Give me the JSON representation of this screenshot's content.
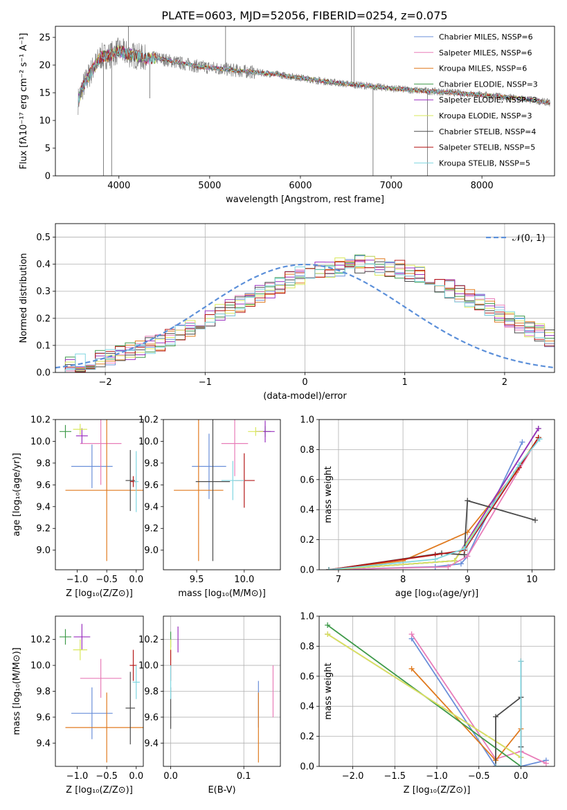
{
  "title": "PLATE=0603, MJD=52056, FIBERID=0254, z=0.075",
  "colors": {
    "Chabrier MILES": "#6a8fd9",
    "Salpeter MILES": "#e87cb8",
    "Kroupa MILES": "#e07a1f",
    "Chabrier ELODIE": "#3f9a4a",
    "Salpeter ELODIE": "#9a2fbf",
    "Kroupa ELODIE": "#d9e85a",
    "Chabrier STELIB": "#4a4a4a",
    "Salpeter STELIB": "#b51818",
    "Kroupa STELIB": "#7fd6e0",
    "data": "#808080",
    "normal": "#5b8fd9"
  },
  "chart_data": [
    {
      "type": "line",
      "title": "PLATE=0603, MJD=52056, FIBERID=0254, z=0.075",
      "xlabel": "wavelength [Angstrom, rest frame]",
      "ylabel": "Flux [fλ10⁻¹⁷ erg cm⁻² s⁻¹ A⁻¹]",
      "xlim": [
        3300,
        8800
      ],
      "ylim": [
        0,
        27
      ],
      "xticks": [
        "4000",
        "5000",
        "6000",
        "7000",
        "8000"
      ],
      "yticks": [
        "0",
        "5",
        "10",
        "15",
        "20",
        "25"
      ],
      "legend_placement": "top-right",
      "legend": [
        "Chabrier MILES, NSSP=6",
        "Salpeter MILES, NSSP=6",
        "Kroupa MILES, NSSP=6",
        "Chabrier ELODIE, NSSP=3",
        "Salpeter ELODIE, NSSP=3",
        "Kroupa ELODIE, NSSP=3",
        "Chabrier STELIB, NSSP=4",
        "Salpeter STELIB, NSSP=5",
        "Kroupa STELIB, NSSP=5"
      ],
      "model_x": [
        3550,
        3600,
        3700,
        3800,
        3900,
        4000,
        4100,
        4200,
        4300,
        4400,
        4500,
        4700,
        4900,
        5100,
        5300,
        5500,
        5700,
        6000,
        6200,
        6500,
        6700,
        7000,
        7300,
        7500,
        7700,
        8000,
        8200,
        8500,
        8750
      ],
      "model_y": [
        13.5,
        16,
        19,
        21.5,
        21.8,
        22.6,
        22,
        21.6,
        21.2,
        21.3,
        21.0,
        20.3,
        19.7,
        19.4,
        19.0,
        18.7,
        18.4,
        17.7,
        17.2,
        16.6,
        16.3,
        15.8,
        15.4,
        15.2,
        15.0,
        14.6,
        14.3,
        13.8,
        13.2
      ],
      "data_spikes": [
        {
          "x": 3830,
          "y": 0
        },
        {
          "x": 3920,
          "y": 0
        },
        {
          "x": 4105,
          "y": 27
        },
        {
          "x": 4340,
          "y": 14
        },
        {
          "x": 5175,
          "y": 27
        },
        {
          "x": 6563,
          "y": 27
        },
        {
          "x": 6590,
          "y": 27
        },
        {
          "x": 6800,
          "y": 0
        },
        {
          "x": 7400,
          "y": 0
        }
      ],
      "grid": false
    },
    {
      "type": "histogram",
      "xlabel": "(data-model)/error",
      "ylabel": "Normed distribution",
      "xlim": [
        -2.5,
        2.5
      ],
      "ylim": [
        0,
        0.55
      ],
      "xticks": [
        "−2",
        "−1",
        "0",
        "1",
        "2"
      ],
      "yticks": [
        "0.0",
        "0.1",
        "0.2",
        "0.3",
        "0.4",
        "0.5"
      ],
      "legend": [
        "𝒩(0, 1)"
      ],
      "legend_placement": "top-right",
      "bin_width": 0.1,
      "bin_start": -2.5,
      "base_values": [
        0.02,
        0.03,
        0.035,
        0.04,
        0.05,
        0.055,
        0.065,
        0.08,
        0.09,
        0.1,
        0.11,
        0.125,
        0.145,
        0.165,
        0.18,
        0.2,
        0.22,
        0.24,
        0.255,
        0.275,
        0.29,
        0.31,
        0.325,
        0.34,
        0.36,
        0.37,
        0.38,
        0.385,
        0.39,
        0.395,
        0.4,
        0.395,
        0.39,
        0.385,
        0.38,
        0.37,
        0.36,
        0.34,
        0.325,
        0.31,
        0.29,
        0.275,
        0.255,
        0.24,
        0.22,
        0.2,
        0.18,
        0.165,
        0.145,
        0.125
      ],
      "grid": true
    },
    {
      "type": "scatter",
      "xlabel": "Z [log₁₀(Z/Z⊙)]",
      "ylabel": "age  [log₁₀(age/yr)]",
      "xlim": [
        -1.37,
        0.12
      ],
      "ylim": [
        8.82,
        10.2
      ],
      "xticks": [
        "−1.0",
        "−0.5",
        "0.0"
      ],
      "yticks": [
        "9.0",
        "9.2",
        "9.4",
        "9.6",
        "9.8",
        "10.0",
        "10.2"
      ],
      "points": [
        {
          "model": "Chabrier MILES",
          "x": -0.75,
          "y": 9.77,
          "dx": 0.35,
          "dy": 0.2
        },
        {
          "model": "Salpeter MILES",
          "x": -0.6,
          "y": 9.98,
          "dx": 0.35,
          "dy": 0.38
        },
        {
          "model": "Kroupa MILES",
          "x": -0.5,
          "y": 9.55,
          "dx": 0.7,
          "dy": 0.65
        },
        {
          "model": "Chabrier ELODIE",
          "x": -1.2,
          "y": 10.09,
          "dx": 0.1,
          "dy": 0.06
        },
        {
          "model": "Salpeter ELODIE",
          "x": -0.92,
          "y": 10.05,
          "dx": 0.1,
          "dy": 0.07
        },
        {
          "model": "Kroupa ELODIE",
          "x": -0.95,
          "y": 10.11,
          "dx": 0.12,
          "dy": 0.05
        },
        {
          "model": "Chabrier STELIB",
          "x": -0.1,
          "y": 9.64,
          "dx": 0.08,
          "dy": 0.28
        },
        {
          "model": "Salpeter STELIB",
          "x": -0.05,
          "y": 9.63,
          "dx": 0.05,
          "dy": 0.05
        },
        {
          "model": "Kroupa STELIB",
          "x": 0.0,
          "y": 9.63,
          "dx": 0.04,
          "dy": 0.28
        }
      ],
      "grid": false
    },
    {
      "type": "scatter",
      "xlabel": "mass [log₁₀(M/M⊙)]",
      "ylabel": "",
      "xlim": [
        9.15,
        10.38
      ],
      "ylim": [
        8.82,
        10.2
      ],
      "xticks": [
        "9.5",
        "10.0"
      ],
      "yticks": [
        "9.0",
        "9.2",
        "9.4",
        "9.6",
        "9.8",
        "10.0",
        "10.2"
      ],
      "points": [
        {
          "model": "Chabrier MILES",
          "x": 9.63,
          "y": 9.77,
          "dx": 0.18,
          "dy": 0.3
        },
        {
          "model": "Salpeter MILES",
          "x": 9.9,
          "y": 9.98,
          "dx": 0.14,
          "dy": 0.3
        },
        {
          "model": "Kroupa MILES",
          "x": 9.52,
          "y": 9.55,
          "dx": 0.26,
          "dy": 0.65
        },
        {
          "model": "Chabrier ELODIE",
          "x": 10.22,
          "y": 10.09,
          "dx": 0.06,
          "dy": 0.05
        },
        {
          "model": "Salpeter ELODIE",
          "x": 10.22,
          "y": 10.09,
          "dx": 0.1,
          "dy": 0.1
        },
        {
          "model": "Kroupa ELODIE",
          "x": 10.12,
          "y": 10.09,
          "dx": 0.08,
          "dy": 0.04
        },
        {
          "model": "Chabrier STELIB",
          "x": 9.67,
          "y": 9.63,
          "dx": 0.18,
          "dy": 0.73
        },
        {
          "model": "Salpeter STELIB",
          "x": 10.0,
          "y": 9.64,
          "dx": 0.11,
          "dy": 0.25
        },
        {
          "model": "Kroupa STELIB",
          "x": 9.88,
          "y": 9.64,
          "dx": 0.12,
          "dy": 0.18
        }
      ],
      "grid": false
    },
    {
      "type": "line",
      "xlabel": "age  [log₁₀(age/yr)]",
      "ylabel": "mass weight",
      "xlim": [
        6.7,
        10.35
      ],
      "ylim": [
        0,
        1.0
      ],
      "xticks": [
        "7",
        "8",
        "9",
        "10"
      ],
      "yticks": [
        "0.0",
        "0.2",
        "0.4",
        "0.6",
        "0.8",
        "1.0"
      ],
      "series": [
        {
          "model": "Chabrier MILES",
          "x": [
            6.85,
            8.5,
            8.9,
            9.0,
            9.85
          ],
          "y": [
            0.0,
            0.02,
            0.04,
            0.09,
            0.85
          ]
        },
        {
          "model": "Salpeter MILES",
          "x": [
            6.85,
            8.7,
            9.0,
            10.1
          ],
          "y": [
            0.0,
            0.02,
            0.09,
            0.88
          ]
        },
        {
          "model": "Kroupa MILES",
          "x": [
            6.85,
            8.0,
            9.0,
            9.75,
            10.1
          ],
          "y": [
            0.0,
            0.06,
            0.25,
            0.65,
            0.88
          ]
        },
        {
          "model": "Chabrier ELODIE",
          "x": [
            6.85,
            8.8,
            10.1
          ],
          "y": [
            0.0,
            0.06,
            0.94
          ]
        },
        {
          "model": "Salpeter ELODIE",
          "x": [
            6.85,
            8.8,
            10.1
          ],
          "y": [
            0.0,
            0.06,
            0.94
          ]
        },
        {
          "model": "Kroupa ELODIE",
          "x": [
            6.85,
            8.8,
            10.1
          ],
          "y": [
            0.0,
            0.06,
            0.88
          ]
        },
        {
          "model": "Chabrier STELIB",
          "x": [
            6.85,
            8.6,
            8.95,
            9.0,
            10.05
          ],
          "y": [
            0.0,
            0.11,
            0.1,
            0.46,
            0.33
          ]
        },
        {
          "model": "Salpeter STELIB",
          "x": [
            6.85,
            8.5,
            8.95,
            9.8,
            10.1
          ],
          "y": [
            0.0,
            0.1,
            0.13,
            0.68,
            0.88
          ]
        },
        {
          "model": "Kroupa STELIB",
          "x": [
            6.85,
            8.5,
            8.95,
            9.8,
            10.12
          ],
          "y": [
            0.0,
            0.07,
            0.14,
            0.7,
            0.87
          ]
        }
      ],
      "grid": true
    },
    {
      "type": "scatter",
      "xlabel": "Z [log₁₀(Z/Z⊙)]",
      "ylabel": "mass [log₁₀(M/M⊙)]",
      "xlim": [
        -1.37,
        0.12
      ],
      "ylim": [
        9.22,
        10.38
      ],
      "xticks": [
        "−1.0",
        "−0.5",
        "0.0"
      ],
      "yticks": [
        "9.4",
        "9.6",
        "9.8",
        "10.0",
        "10.2"
      ],
      "points": [
        {
          "model": "Chabrier MILES",
          "x": -0.75,
          "y": 9.63,
          "dx": 0.35,
          "dy": 0.2
        },
        {
          "model": "Salpeter MILES",
          "x": -0.6,
          "y": 9.9,
          "dx": 0.35,
          "dy": 0.15
        },
        {
          "model": "Kroupa MILES",
          "x": -0.5,
          "y": 9.52,
          "dx": 0.7,
          "dy": 0.27
        },
        {
          "model": "Chabrier ELODIE",
          "x": -1.2,
          "y": 10.22,
          "dx": 0.1,
          "dy": 0.06
        },
        {
          "model": "Salpeter ELODIE",
          "x": -0.92,
          "y": 10.22,
          "dx": 0.14,
          "dy": 0.1
        },
        {
          "model": "Kroupa ELODIE",
          "x": -0.95,
          "y": 10.12,
          "dx": 0.12,
          "dy": 0.08
        },
        {
          "model": "Chabrier STELIB",
          "x": -0.1,
          "y": 9.67,
          "dx": 0.08,
          "dy": 0.28
        },
        {
          "model": "Salpeter STELIB",
          "x": -0.05,
          "y": 10.0,
          "dx": 0.06,
          "dy": 0.12
        },
        {
          "model": "Kroupa STELIB",
          "x": 0.0,
          "y": 9.87,
          "dx": 0.06,
          "dy": 0.13
        }
      ],
      "grid": false
    },
    {
      "type": "scatter",
      "xlabel": "E(B-V)",
      "ylabel": "",
      "xlim": [
        -0.01,
        0.15
      ],
      "ylim": [
        9.22,
        10.38
      ],
      "xticks": [
        "0.0",
        "0.1"
      ],
      "yticks": [
        "9.4",
        "9.6",
        "9.8",
        "10.0",
        "10.2"
      ],
      "points": [
        {
          "model": "Chabrier MILES",
          "x": 0.12,
          "y": 9.7,
          "dx": 0.0,
          "dy": 0.18
        },
        {
          "model": "Salpeter MILES",
          "x": 0.14,
          "y": 9.8,
          "dx": 0.0,
          "dy": 0.2
        },
        {
          "model": "Kroupa MILES",
          "x": 0.12,
          "y": 9.52,
          "dx": 0.0,
          "dy": 0.27
        },
        {
          "model": "Chabrier ELODIE",
          "x": 0.0,
          "y": 10.2,
          "dx": 0.0,
          "dy": 0.06
        },
        {
          "model": "Salpeter ELODIE",
          "x": 0.01,
          "y": 10.2,
          "dx": 0.0,
          "dy": 0.1
        },
        {
          "model": "Kroupa ELODIE",
          "x": 0.0,
          "y": 10.12,
          "dx": 0.0,
          "dy": 0.08
        },
        {
          "model": "Chabrier STELIB",
          "x": 0.0,
          "y": 9.67,
          "dx": 0.0,
          "dy": 0.16
        },
        {
          "model": "Salpeter STELIB",
          "x": 0.0,
          "y": 10.0,
          "dx": 0.0,
          "dy": 0.12
        },
        {
          "model": "Kroupa STELIB",
          "x": 0.0,
          "y": 9.87,
          "dx": 0.0,
          "dy": 0.13
        }
      ],
      "grid": true
    },
    {
      "type": "line",
      "xlabel": "Z [log₁₀(Z/Z⊙)]",
      "ylabel": "mass weight",
      "xlim": [
        -2.4,
        0.4
      ],
      "ylim": [
        0,
        1.0
      ],
      "xticks": [
        "−2.0",
        "−1.5",
        "−1.0",
        "−0.5",
        "0.0"
      ],
      "yticks": [
        "0.0",
        "0.2",
        "0.4",
        "0.6",
        "0.8",
        "1.0"
      ],
      "series": [
        {
          "model": "Chabrier MILES",
          "x": [
            -1.3,
            -0.3,
            0.0,
            0.3
          ],
          "y": [
            0.85,
            0.0,
            0.0,
            0.04
          ]
        },
        {
          "model": "Salpeter MILES",
          "x": [
            -1.3,
            -0.3,
            0.0,
            0.3
          ],
          "y": [
            0.88,
            0.05,
            0.1,
            0.02
          ]
        },
        {
          "model": "Kroupa MILES",
          "x": [
            -1.3,
            -0.3,
            0.0
          ],
          "y": [
            0.65,
            0.04,
            0.25
          ]
        },
        {
          "model": "Chabrier ELODIE",
          "x": [
            -2.3,
            0.0
          ],
          "y": [
            0.94,
            0.0
          ]
        },
        {
          "model": "Salpeter ELODIE",
          "x": [
            -2.3,
            0.0
          ],
          "y": [
            0.88,
            0.06
          ]
        },
        {
          "model": "Kroupa ELODIE",
          "x": [
            -2.3,
            0.0
          ],
          "y": [
            0.88,
            0.06
          ]
        },
        {
          "model": "Chabrier STELIB",
          "x": [
            -0.3,
            -0.3,
            0.0,
            0.0
          ],
          "y": [
            0.0,
            0.33,
            0.46,
            0.13
          ]
        },
        {
          "model": "Salpeter STELIB",
          "x": [
            -0.3,
            0.0,
            0.0
          ],
          "y": [
            0.0,
            0.0,
            0.7
          ]
        },
        {
          "model": "Kroupa STELIB",
          "x": [
            -0.3,
            0.0,
            0.0
          ],
          "y": [
            0.0,
            0.0,
            0.7
          ]
        }
      ],
      "grid": true
    }
  ]
}
